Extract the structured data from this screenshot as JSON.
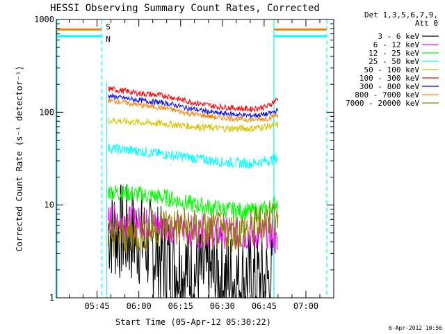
{
  "chart_data": {
    "type": "line",
    "title": "HESSI Observing Summary Count Rates, Corrected",
    "xlabel": "Start Time (05-Apr-12 05:30:22)",
    "ylabel": "Corrected Count Rate (s⁻¹ detector⁻¹)",
    "yscale": "log",
    "ylim": [
      1,
      1000
    ],
    "xlim": [
      "05:30:22",
      "07:10:00"
    ],
    "x_ticks": [
      "05:45",
      "06:00",
      "06:15",
      "06:30",
      "06:45",
      "07:00"
    ],
    "y_ticks": [
      "1",
      "10",
      "100",
      "1000"
    ],
    "grid": false,
    "legend": {
      "placement": "right",
      "header": [
        "Det 1,3,5,6,7,9,",
        "Att 0"
      ]
    },
    "data_window": [
      "05:48:30",
      "06:48:40"
    ],
    "flag_markers": [
      {
        "label": "S",
        "color": "#ff8000",
        "value": 780,
        "intervals": [
          [
            "05:30:22",
            "05:46:40"
          ],
          [
            "06:48:30",
            "07:07:30"
          ]
        ]
      },
      {
        "label": "N",
        "color": "#00ffff",
        "value": 660,
        "intervals": [
          [
            "05:30:22",
            "05:46:40"
          ],
          [
            "06:48:30",
            "07:07:30"
          ]
        ]
      }
    ],
    "series": [
      {
        "name": "3 - 6 keV",
        "color": "#000000",
        "x": [
          "05:49",
          "06:00",
          "06:10",
          "06:20",
          "06:30",
          "06:40",
          "06:48"
        ],
        "y": [
          5.5,
          4.5,
          2.5,
          1.8,
          1.6,
          1.5,
          1.5
        ]
      },
      {
        "name": "6 - 12 keV",
        "color": "#ff00ff",
        "x": [
          "05:49",
          "06:00",
          "06:10",
          "06:20",
          "06:30",
          "06:40",
          "06:48",
          "06:50"
        ],
        "y": [
          7.0,
          6.5,
          5.8,
          5.2,
          5.0,
          4.8,
          5.0,
          3.3
        ]
      },
      {
        "name": "12 - 25 keV",
        "color": "#00ff00",
        "x": [
          "05:49",
          "06:00",
          "06:10",
          "06:20",
          "06:30",
          "06:40",
          "06:46",
          "06:50"
        ],
        "y": [
          14.0,
          13.0,
          12.0,
          10.0,
          9.0,
          8.5,
          9.0,
          11.0
        ]
      },
      {
        "name": "25 - 50 keV",
        "color": "#00ffff",
        "x": [
          "05:49",
          "06:00",
          "06:10",
          "06:20",
          "06:30",
          "06:40",
          "06:46",
          "06:50"
        ],
        "y": [
          41,
          38,
          35,
          32,
          29,
          28,
          30,
          32
        ]
      },
      {
        "name": "50 - 100 keV",
        "color": "#d4c400",
        "x": [
          "05:49",
          "06:00",
          "06:10",
          "06:20",
          "06:30",
          "06:40",
          "06:46",
          "06:50"
        ],
        "y": [
          82,
          78,
          75,
          70,
          67,
          67,
          70,
          73
        ]
      },
      {
        "name": "100 - 300 keV",
        "color": "#ff0000",
        "x": [
          "05:49",
          "06:00",
          "06:10",
          "06:18",
          "06:28",
          "06:40",
          "06:46",
          "06:50"
        ],
        "y": [
          180,
          160,
          150,
          130,
          115,
          108,
          115,
          140
        ]
      },
      {
        "name": "300 - 800 keV",
        "color": "#0000ff",
        "x": [
          "05:49",
          "06:00",
          "06:10",
          "06:18",
          "06:28",
          "06:40",
          "06:46",
          "06:50"
        ],
        "y": [
          150,
          135,
          125,
          110,
          98,
          92,
          95,
          105
        ]
      },
      {
        "name": "800 - 7000 keV",
        "color": "#ff8000",
        "x": [
          "05:49",
          "06:00",
          "06:10",
          "06:18",
          "06:28",
          "06:40",
          "06:46",
          "06:50"
        ],
        "y": [
          135,
          120,
          110,
          97,
          88,
          83,
          85,
          95
        ]
      },
      {
        "name": "7000 - 20000 keV",
        "color": "#8b7d00",
        "x": [
          "05:49",
          "06:00",
          "06:10",
          "06:20",
          "06:30",
          "06:40",
          "06:46",
          "06:50"
        ],
        "y": [
          4.5,
          5.0,
          6.0,
          5.5,
          5.0,
          5.5,
          7.0,
          8.0
        ]
      }
    ]
  },
  "footer": {
    "timestamp": "6-Apr-2012 10:56"
  }
}
